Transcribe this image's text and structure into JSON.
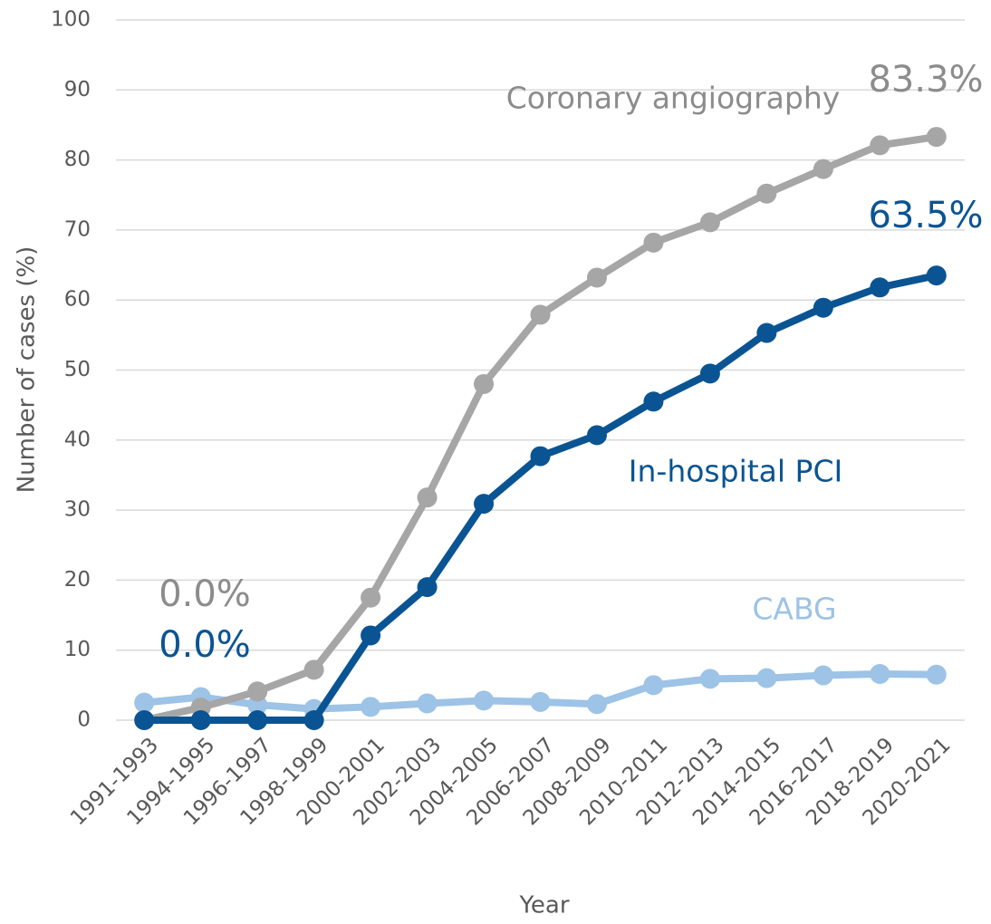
{
  "chart_data": {
    "type": "line",
    "x_label": "Year",
    "y_label": "Number of cases (%)",
    "categories": [
      "1991-1993",
      "1994-1995",
      "1996-1997",
      "1998-1999",
      "2000-2001",
      "2002-2003",
      "2004-2005",
      "2006-2007",
      "2008-2009",
      "2010-2011",
      "2012-2013",
      "2014-2015",
      "2016-2017",
      "2018-2019",
      "2020-2021"
    ],
    "ylim": [
      0,
      100
    ],
    "yticks": [
      0,
      10,
      20,
      30,
      40,
      50,
      60,
      70,
      80,
      90,
      100
    ],
    "grid": true,
    "series": [
      {
        "name": "CABG",
        "color": "#9dc3e6",
        "label_color": "#9dc3e6",
        "values": [
          2.5,
          3.3,
          2.2,
          1.6,
          1.9,
          2.4,
          2.8,
          2.6,
          2.3,
          5.0,
          5.9,
          6.0,
          6.4,
          6.6,
          6.5
        ]
      },
      {
        "name": "Coronary angiography",
        "color": "#a6a6a6",
        "label_color": "#8c8c8c",
        "values": [
          0.0,
          1.8,
          4.1,
          7.2,
          17.5,
          31.8,
          48.0,
          57.9,
          63.2,
          68.2,
          71.1,
          75.2,
          78.7,
          82.1,
          83.3
        ],
        "value_labels": [
          "0.0%",
          null,
          null,
          null,
          null,
          null,
          null,
          null,
          null,
          null,
          null,
          null,
          null,
          null,
          "83.3%"
        ]
      },
      {
        "name": "In-hospital PCI",
        "color": "#0a5493",
        "label_color": "#0a5493",
        "values": [
          0.0,
          0.0,
          0.0,
          0.0,
          12.1,
          19.0,
          30.9,
          37.7,
          40.7,
          45.5,
          49.5,
          55.3,
          58.9,
          61.8,
          63.5
        ],
        "value_labels": [
          "0.0%",
          null,
          null,
          null,
          null,
          null,
          null,
          null,
          null,
          null,
          null,
          null,
          null,
          null,
          "63.5%"
        ]
      }
    ]
  }
}
